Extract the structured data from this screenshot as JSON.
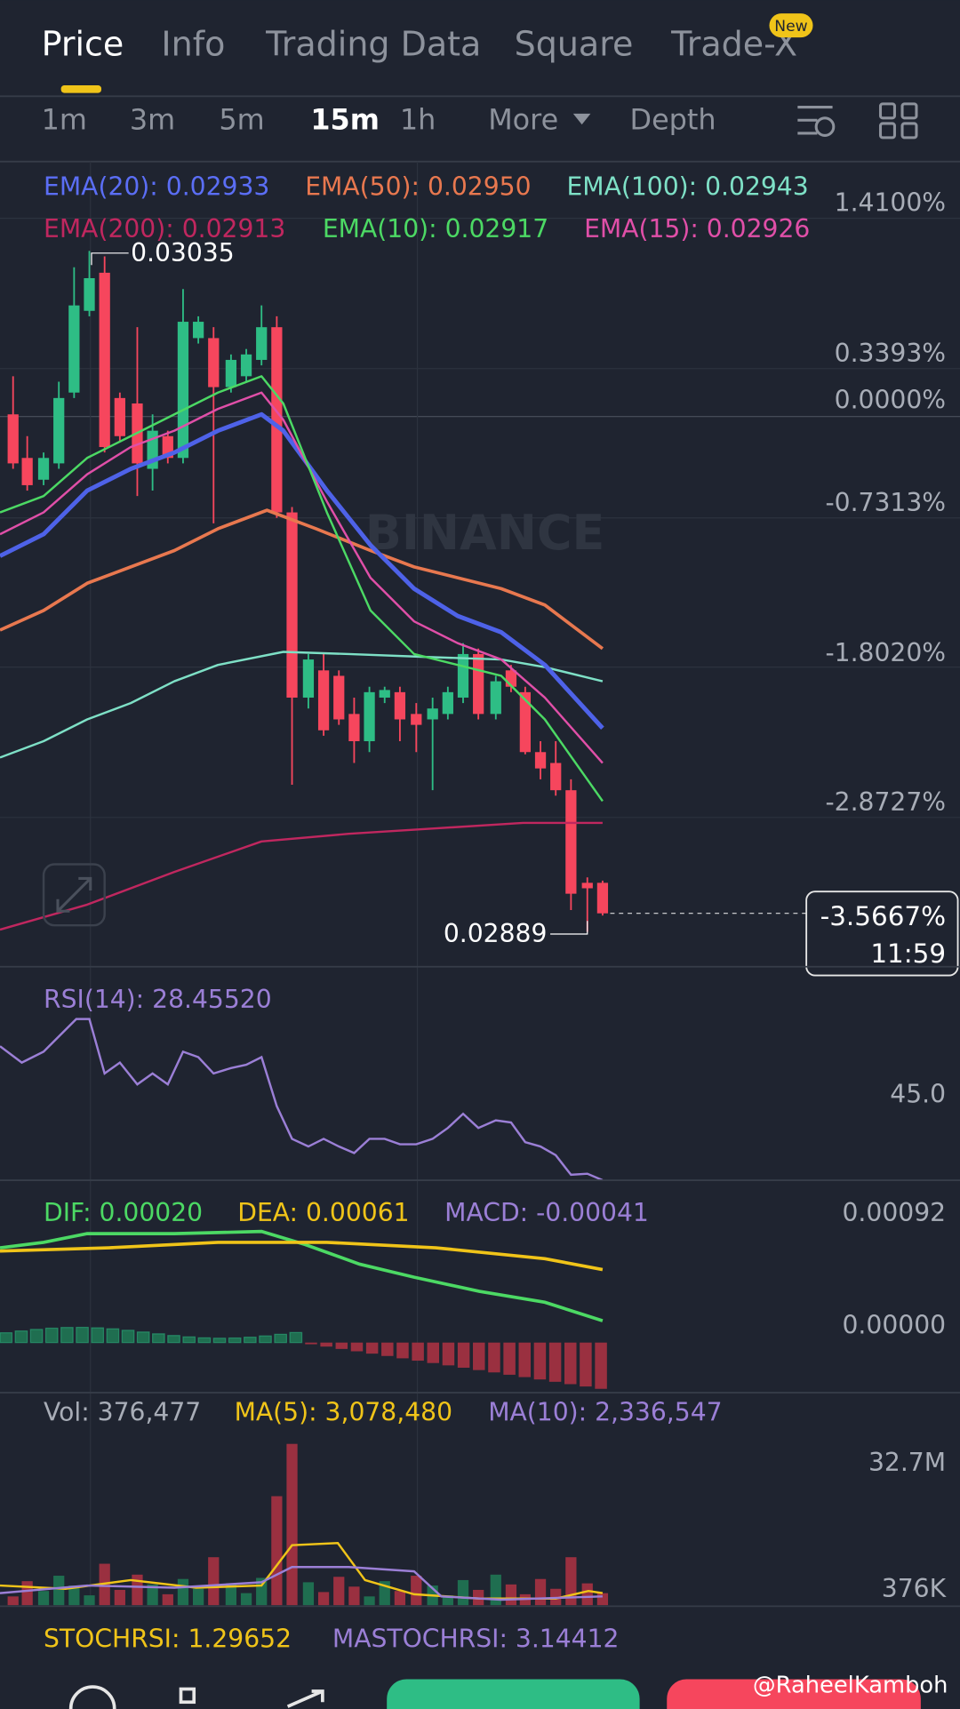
{
  "tabs": [
    "Price",
    "Info",
    "Trading Data",
    "Square",
    "Trade-X"
  ],
  "badge": "New",
  "intervals": [
    "1m",
    "3m",
    "5m",
    "15m",
    "1h",
    "More",
    "Depth"
  ],
  "ema_legend": [
    "EMA(20): 0.02933",
    "EMA(50): 0.02950",
    "EMA(100): 0.02943",
    "EMA(200): 0.02913",
    "EMA(10): 0.02917",
    "EMA(15): 0.02926"
  ],
  "price_axis": [
    "1.4100%",
    "0.3393%",
    "0.0000%",
    "-0.7313%",
    "-1.8020%",
    "-2.8727%"
  ],
  "price_high": "0.03035",
  "price_low": "0.02889",
  "current": {
    "change": "-3.5667%",
    "countdown": "11:59"
  },
  "watermark": "BINANCE",
  "rsi": {
    "label": "RSI(14): 28.45520",
    "axis": "45.0"
  },
  "macd": {
    "legend": [
      "DIF: 0.00020",
      "DEA: 0.00061",
      "MACD: -0.00041"
    ],
    "axis": [
      "0.00092",
      "0.00000"
    ]
  },
  "volume": {
    "legend": [
      "Vol: 376,477",
      "MA(5): 3,078,480",
      "MA(10): 2,336,547"
    ],
    "axis": [
      "32.7M",
      "376K"
    ]
  },
  "stochrsi": [
    "STOCHRSI: 1.29652",
    "MASTOCHRSI: 3.14412"
  ],
  "credit": "@RaheelKamboh"
}
